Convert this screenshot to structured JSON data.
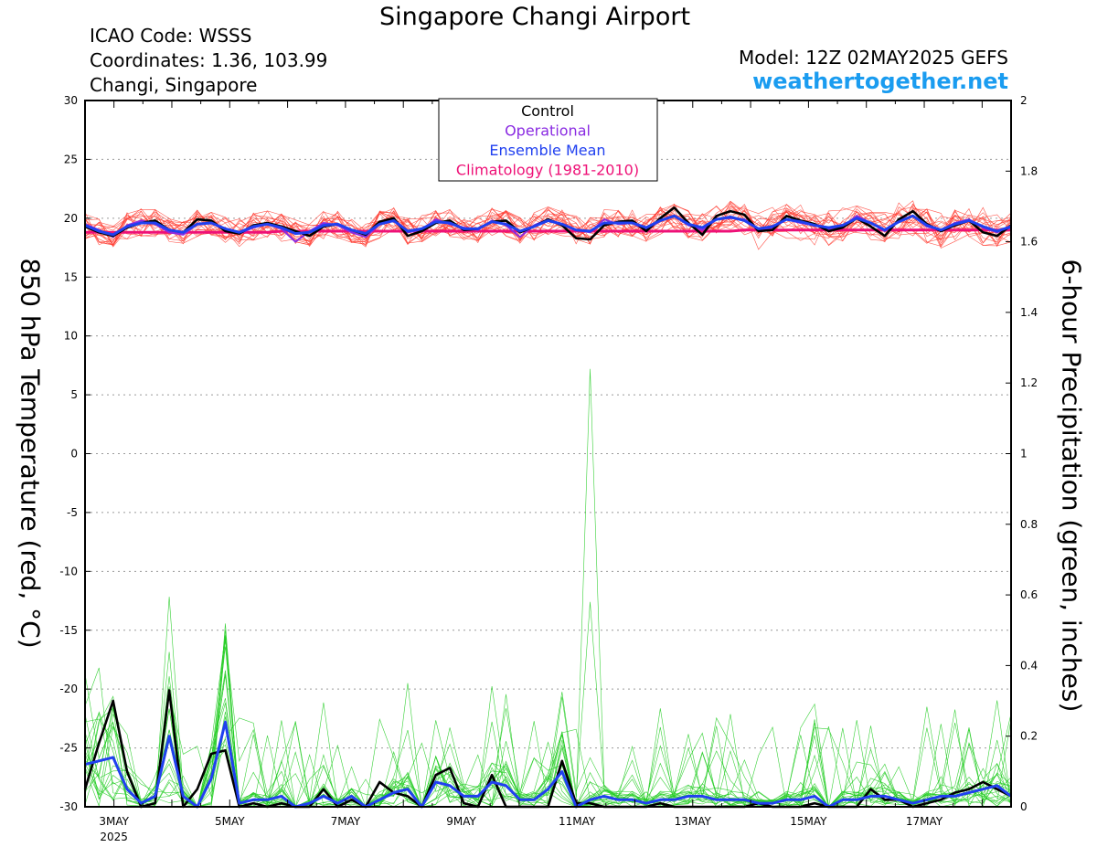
{
  "header": {
    "title": "Singapore Changi Airport",
    "icao": "ICAO Code: WSSS",
    "coordinates": "Coordinates: 1.36, 103.99",
    "place": "Changi, Singapore",
    "model": "Model: 12Z 02MAY2025 GEFS",
    "site": "weathertogether.net"
  },
  "colors": {
    "members_temp": "#ff3b30",
    "members_precip": "#22cc22",
    "control": "#000000",
    "operational": "#8a2be2",
    "ensemble_mean": "#2040f0",
    "climatology": "#ee1177",
    "site": "#1a9cf0"
  },
  "chart_data": {
    "type": "line",
    "title": "Singapore Changi Airport",
    "ylabel_left": "850 hPa Temperature (red, °C)",
    "ylabel_right": "6-hour Precipitation (green, inches)",
    "ylim_left": [
      -30,
      30
    ],
    "ylim_right": [
      0,
      2
    ],
    "yticks_left": [
      "30",
      "25",
      "20",
      "15",
      "10",
      "5",
      "0",
      "-5",
      "-10",
      "-15",
      "-20",
      "-25",
      "-30"
    ],
    "yticks_right": [
      "2",
      "1.8",
      "1.6",
      "1.4",
      "1.2",
      "1",
      "0.8",
      "0.6",
      "0.4",
      "0.2",
      "0"
    ],
    "xticks": [
      "3MAY",
      "5MAY",
      "7MAY",
      "9MAY",
      "11MAY",
      "13MAY",
      "15MAY",
      "17MAY"
    ],
    "xtick_year": "2025",
    "x_start_day": 2.5,
    "x_end_day": 18.5,
    "grid": true,
    "legend": [
      "Control",
      "Operational",
      "Ensemble Mean",
      "Climatology (1981-2010)"
    ],
    "legend_position": "top-center",
    "series": [
      {
        "name": "Control",
        "kind": "temperature",
        "values": [
          19.3,
          18.8,
          18.5,
          19.2,
          19.6,
          19.8,
          19.0,
          18.8,
          19.9,
          19.8,
          18.9,
          18.7,
          19.4,
          19.6,
          19.3,
          18.9,
          18.5,
          19.3,
          19.5,
          19.0,
          18.6,
          19.7,
          20.0,
          18.5,
          18.9,
          19.6,
          19.8,
          19.0,
          19.1,
          19.7,
          19.8,
          18.8,
          19.3,
          19.9,
          19.4,
          18.3,
          18.2,
          19.4,
          19.7,
          19.8,
          18.9,
          20.0,
          20.9,
          19.6,
          18.6,
          20.2,
          20.6,
          20.3,
          18.9,
          19.0,
          20.2,
          19.8,
          19.5,
          18.9,
          19.2,
          20.0,
          19.3,
          18.5,
          19.9,
          20.6,
          19.5,
          18.9,
          19.4,
          19.8,
          18.8,
          18.5,
          19.4
        ]
      },
      {
        "name": "Operational",
        "kind": "temperature",
        "values": [
          19.5,
          19.0,
          18.4,
          19.4,
          19.8,
          19.5,
          18.8,
          18.6,
          19.5,
          19.6,
          19.0,
          18.7,
          19.2,
          19.5,
          19.1,
          18.0,
          18.9,
          19.6,
          19.4,
          18.8,
          18.4,
          19.5,
          19.8,
          18.8,
          19.0,
          19.9,
          19.5,
          19.2,
          19.0,
          19.8,
          19.4,
          18.4,
          19.4,
          19.9,
          19.5,
          19.0,
          18.8,
          19.9,
          19.5,
          19.6,
          19.0,
          19.8,
          20.2,
          19.4,
          19.0,
          19.9,
          20.0,
          19.9,
          19.0,
          19.2,
          19.9,
          19.6,
          19.4,
          19.1,
          19.3,
          20.2,
          19.6,
          18.9,
          19.8,
          20.2,
          19.3,
          19.0,
          19.6,
          19.9,
          19.2,
          18.8,
          19.2
        ]
      },
      {
        "name": "Ensemble Mean",
        "kind": "temperature",
        "values": [
          19.4,
          18.9,
          18.6,
          19.3,
          19.6,
          19.6,
          19.0,
          18.8,
          19.5,
          19.6,
          19.1,
          18.8,
          19.3,
          19.5,
          19.2,
          18.7,
          18.8,
          19.4,
          19.5,
          19.0,
          18.7,
          19.5,
          19.8,
          18.9,
          19.1,
          19.7,
          19.6,
          19.1,
          19.1,
          19.7,
          19.5,
          18.9,
          19.3,
          19.8,
          19.5,
          19.0,
          18.9,
          19.6,
          19.6,
          19.6,
          19.2,
          19.8,
          20.2,
          19.5,
          19.2,
          19.9,
          20.1,
          19.8,
          19.1,
          19.3,
          19.9,
          19.7,
          19.4,
          19.2,
          19.4,
          20.0,
          19.6,
          19.0,
          19.7,
          20.2,
          19.4,
          19.0,
          19.5,
          19.8,
          19.3,
          18.9,
          19.3
        ]
      },
      {
        "name": "Climatology (1981-2010)",
        "kind": "temperature",
        "values": [
          18.8,
          18.8,
          18.8,
          18.8,
          18.8,
          18.8,
          18.8,
          18.8,
          18.8,
          18.8,
          18.8,
          18.8,
          18.8,
          18.8,
          18.9,
          18.9,
          18.9,
          18.9,
          18.9,
          18.9,
          18.9,
          18.9,
          18.9,
          18.9,
          18.9,
          18.9,
          18.9,
          18.9,
          18.9,
          18.9,
          18.9,
          18.9,
          18.9,
          18.9,
          18.9,
          18.9,
          18.9,
          18.9,
          18.9,
          18.9,
          18.9,
          18.9,
          18.9,
          18.9,
          18.9,
          18.9,
          18.9,
          19.0,
          19.0,
          19.0,
          19.0,
          19.0,
          19.0,
          19.0,
          19.0,
          19.0,
          19.0,
          19.0,
          19.0,
          19.0,
          19.0,
          19.0,
          19.0,
          19.0,
          19.0,
          19.0,
          19.0
        ]
      },
      {
        "name": "Control",
        "kind": "precipitation",
        "values": [
          0.05,
          0.18,
          0.3,
          0.1,
          0.0,
          0.01,
          0.33,
          0.0,
          0.05,
          0.15,
          0.16,
          0.0,
          0.01,
          0.0,
          0.01,
          0.0,
          0.0,
          0.05,
          0.0,
          0.02,
          0.0,
          0.07,
          0.04,
          0.03,
          0.0,
          0.09,
          0.11,
          0.01,
          0.0,
          0.09,
          0.0,
          0.0,
          0.0,
          0.0,
          0.13,
          0.01,
          0.01,
          0.0,
          0.0,
          0.0,
          0.0,
          0.01,
          0.0,
          0.0,
          0.0,
          0.0,
          0.0,
          0.0,
          0.01,
          0.0,
          0.0,
          0.0,
          0.01,
          0.0,
          0.0,
          0.0,
          0.05,
          0.02,
          0.02,
          0.0,
          0.01,
          0.02,
          0.04,
          0.05,
          0.07,
          0.05,
          0.03
        ]
      },
      {
        "name": "Ensemble Mean",
        "kind": "precipitation",
        "values": [
          0.12,
          0.13,
          0.14,
          0.05,
          0.01,
          0.03,
          0.2,
          0.03,
          0.0,
          0.08,
          0.24,
          0.01,
          0.02,
          0.02,
          0.03,
          0.0,
          0.01,
          0.03,
          0.01,
          0.03,
          0.0,
          0.02,
          0.04,
          0.05,
          0.0,
          0.07,
          0.06,
          0.03,
          0.03,
          0.07,
          0.06,
          0.02,
          0.02,
          0.05,
          0.1,
          0.0,
          0.02,
          0.03,
          0.02,
          0.02,
          0.01,
          0.02,
          0.02,
          0.03,
          0.03,
          0.02,
          0.02,
          0.02,
          0.01,
          0.01,
          0.02,
          0.02,
          0.03,
          0.0,
          0.02,
          0.02,
          0.03,
          0.03,
          0.02,
          0.01,
          0.02,
          0.03,
          0.03,
          0.04,
          0.05,
          0.06,
          0.03
        ]
      }
    ]
  }
}
